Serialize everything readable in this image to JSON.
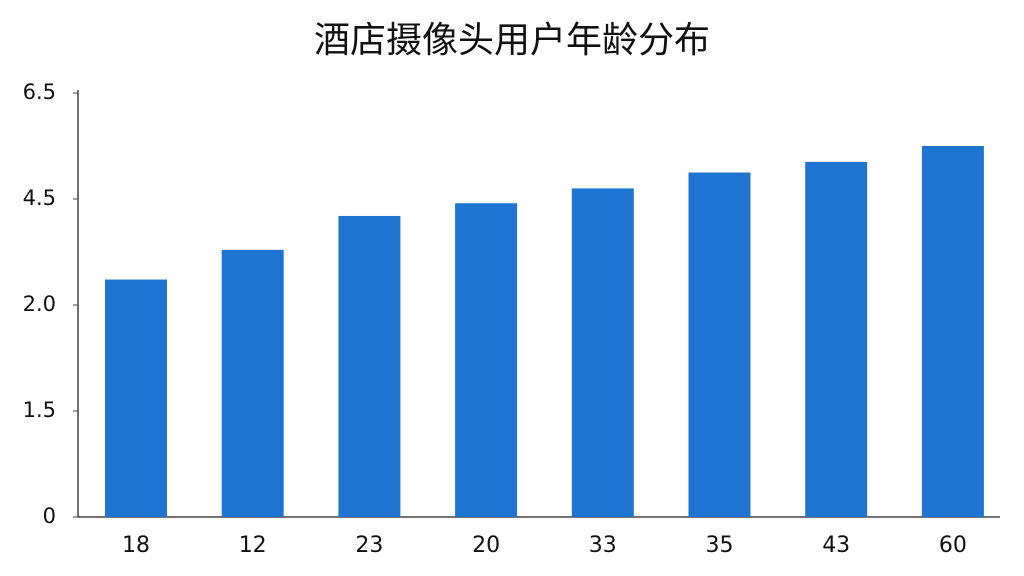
{
  "chart_data": {
    "type": "bar",
    "title": "酒店摄像头用户年龄分布",
    "categories": [
      "18",
      "12",
      "23",
      "20",
      "33",
      "35",
      "43",
      "60"
    ],
    "values": [
      2.6,
      3.3,
      4.1,
      4.4,
      4.7,
      5.0,
      5.2,
      5.5
    ],
    "color": "#1f74d2",
    "ylim": [
      0,
      6.5
    ],
    "yticks": [
      0,
      1.5,
      {
        "value": 2,
        "label": "2.0"
      },
      4.5,
      6.5
    ]
  }
}
